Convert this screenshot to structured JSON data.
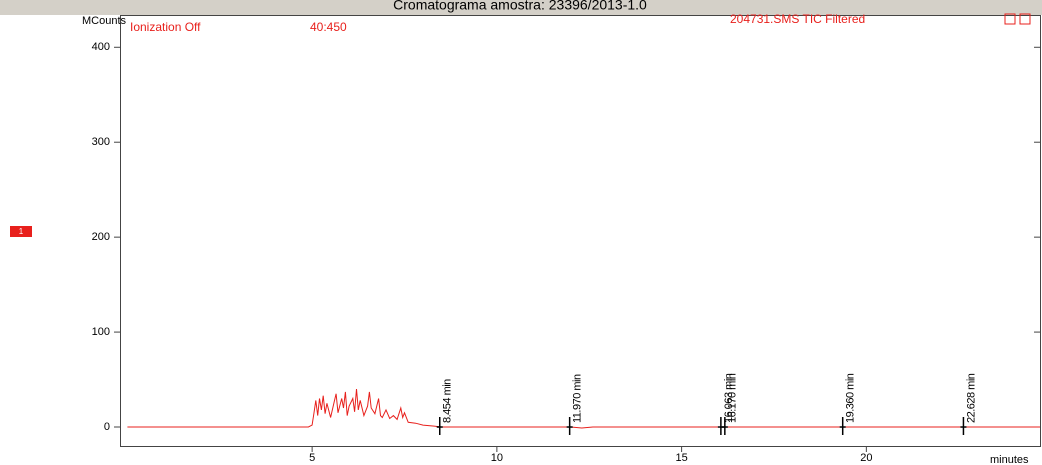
{
  "chart_data": {
    "type": "line",
    "title": "Cromatograma amostra: 23396/2013-1.0",
    "y_label": "MCounts",
    "x_label": "minutes",
    "status": "Ionization Off",
    "mass_range": "40:450",
    "trace_name": "204731.SMS TIC Filtered",
    "segment_marker": "1",
    "color": "#e8201c",
    "xlim": [
      -0.2,
      24.7
    ],
    "ylim": [
      -20,
      434
    ],
    "xticks": [
      5,
      10,
      15,
      20
    ],
    "yticks": [
      0,
      100,
      200,
      300,
      400
    ],
    "x": [
      0,
      4.9,
      5.0,
      5.05,
      5.1,
      5.15,
      5.2,
      5.25,
      5.3,
      5.35,
      5.4,
      5.5,
      5.6,
      5.65,
      5.7,
      5.8,
      5.85,
      5.9,
      5.95,
      6.0,
      6.1,
      6.15,
      6.2,
      6.25,
      6.3,
      6.4,
      6.5,
      6.55,
      6.6,
      6.7,
      6.8,
      6.85,
      6.9,
      7.0,
      7.1,
      7.2,
      7.3,
      7.4,
      7.45,
      7.5,
      7.6,
      7.8,
      8.0,
      8.3,
      8.5,
      12.0,
      12.3,
      12.6,
      24.7
    ],
    "values": [
      0,
      0,
      2,
      15,
      28,
      12,
      30,
      18,
      33,
      14,
      25,
      10,
      27,
      35,
      15,
      30,
      20,
      37,
      12,
      22,
      30,
      16,
      40,
      18,
      28,
      12,
      22,
      37,
      20,
      14,
      30,
      12,
      10,
      18,
      9,
      12,
      8,
      20,
      10,
      15,
      5,
      4,
      2,
      1,
      0,
      0,
      -1,
      0,
      0
    ],
    "peaks": [
      {
        "x": 8.454,
        "label": "8.454 min"
      },
      {
        "x": 11.97,
        "label": "11.970 min"
      },
      {
        "x": 16.063,
        "label": "16.063 min"
      },
      {
        "x": 16.17,
        "label": "16.170 min"
      },
      {
        "x": 19.36,
        "label": "19.360 min"
      },
      {
        "x": 22.628,
        "label": "22.628 min"
      }
    ]
  }
}
